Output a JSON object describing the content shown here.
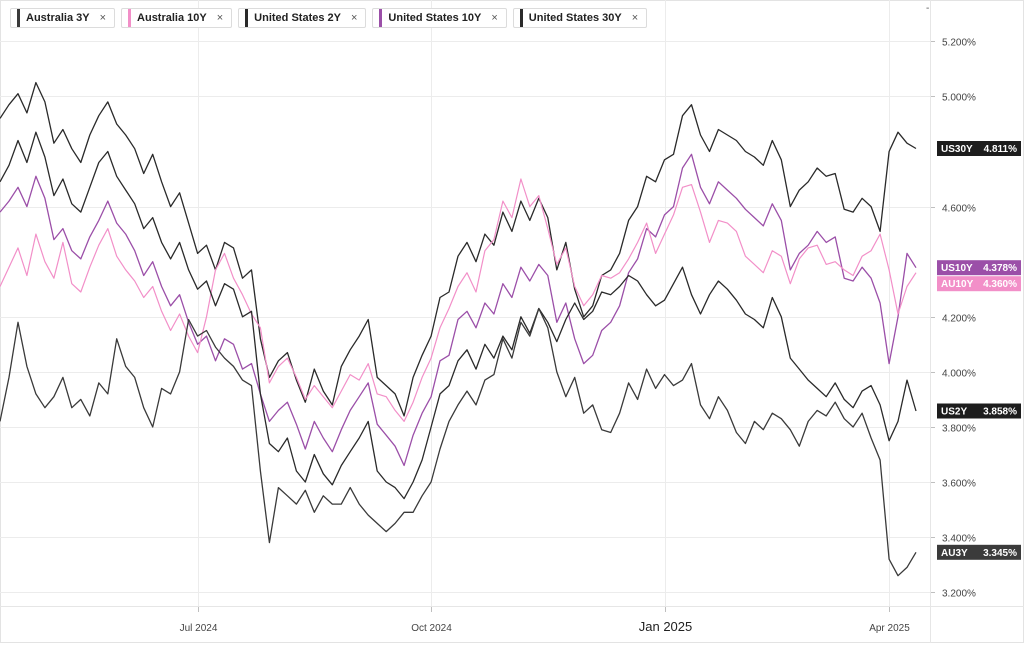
{
  "legend": [
    {
      "label": "Australia 3Y",
      "color": "#3a3a3a"
    },
    {
      "label": "Australia 10Y",
      "color": "#f28fc8"
    },
    {
      "label": "United States 2Y",
      "color": "#2a2a2a"
    },
    {
      "label": "United States 10Y",
      "color": "#9b4fa8"
    },
    {
      "label": "United States 30Y",
      "color": "#2a2a2a"
    }
  ],
  "legend_close_glyph": "×",
  "menu_glyph": "‐",
  "chart_data": {
    "type": "line",
    "x_ticks": [
      "Jul 2024",
      "Oct 2024",
      "Jan 2025",
      "Apr 2025"
    ],
    "y_ticks": [
      "5.200%",
      "5.000%",
      "4.600%",
      "4.200%",
      "4.000%",
      "3.800%",
      "3.600%",
      "3.400%",
      "3.200%"
    ],
    "ylim": [
      3.15,
      5.35
    ],
    "grid": true,
    "series": [
      {
        "name": "United States 30Y",
        "tag": "US30Y",
        "last": "4.811%",
        "color": "#2a2a2a",
        "label_bg": "#1d1d1d",
        "values": [
          4.92,
          4.97,
          5.01,
          4.94,
          5.05,
          4.98,
          4.83,
          4.88,
          4.81,
          4.76,
          4.86,
          4.93,
          4.98,
          4.9,
          4.86,
          4.81,
          4.72,
          4.79,
          4.69,
          4.6,
          4.65,
          4.54,
          4.43,
          4.46,
          4.37,
          4.47,
          4.45,
          4.34,
          4.37,
          4.12,
          3.98,
          4.04,
          4.07,
          3.97,
          3.89,
          4.01,
          3.93,
          3.88,
          4.02,
          4.08,
          4.13,
          4.19,
          3.98,
          3.95,
          3.92,
          3.84,
          3.98,
          4.06,
          4.13,
          4.27,
          4.29,
          4.42,
          4.47,
          4.4,
          4.5,
          4.46,
          4.58,
          4.51,
          4.62,
          4.55,
          4.63,
          4.56,
          4.37,
          4.47,
          4.3,
          4.2,
          4.24,
          4.35,
          4.37,
          4.43,
          4.55,
          4.6,
          4.71,
          4.69,
          4.77,
          4.79,
          4.93,
          4.97,
          4.86,
          4.8,
          4.88,
          4.86,
          4.84,
          4.8,
          4.78,
          4.75,
          4.84,
          4.77,
          4.6,
          4.66,
          4.69,
          4.74,
          4.71,
          4.72,
          4.59,
          4.58,
          4.63,
          4.6,
          4.51,
          4.8,
          4.87,
          4.83,
          4.811
        ]
      },
      {
        "name": "United States 10Y",
        "tag": "US10Y",
        "last": "4.378%",
        "color": "#9b4fa8",
        "label_bg": "#9b4fa8",
        "values": [
          4.58,
          4.62,
          4.67,
          4.6,
          4.71,
          4.63,
          4.48,
          4.52,
          4.44,
          4.41,
          4.49,
          4.55,
          4.62,
          4.54,
          4.5,
          4.44,
          4.35,
          4.4,
          4.31,
          4.24,
          4.28,
          4.18,
          4.1,
          4.13,
          4.04,
          4.12,
          4.1,
          4.01,
          4.03,
          3.92,
          3.82,
          3.86,
          3.89,
          3.81,
          3.72,
          3.82,
          3.76,
          3.71,
          3.79,
          3.86,
          3.91,
          3.96,
          3.81,
          3.77,
          3.73,
          3.66,
          3.77,
          3.85,
          3.91,
          4.04,
          4.06,
          4.19,
          4.22,
          4.16,
          4.25,
          4.21,
          4.32,
          4.27,
          4.38,
          4.33,
          4.39,
          4.35,
          4.18,
          4.25,
          4.12,
          4.03,
          4.06,
          4.15,
          4.18,
          4.24,
          4.36,
          4.41,
          4.52,
          4.49,
          4.57,
          4.6,
          4.74,
          4.79,
          4.67,
          4.61,
          4.69,
          4.66,
          4.63,
          4.59,
          4.56,
          4.53,
          4.61,
          4.55,
          4.37,
          4.43,
          4.46,
          4.51,
          4.47,
          4.49,
          4.34,
          4.33,
          4.38,
          4.34,
          4.25,
          4.03,
          4.2,
          4.43,
          4.378
        ]
      },
      {
        "name": "Australia 10Y",
        "tag": "AU10Y",
        "last": "4.360%",
        "color": "#f28fc8",
        "label_bg": "#f28fc8",
        "values": [
          4.31,
          4.38,
          4.45,
          4.35,
          4.5,
          4.4,
          4.34,
          4.47,
          4.32,
          4.29,
          4.38,
          4.46,
          4.52,
          4.42,
          4.37,
          4.33,
          4.27,
          4.31,
          4.22,
          4.15,
          4.21,
          4.13,
          4.07,
          4.2,
          4.37,
          4.43,
          4.34,
          4.28,
          4.21,
          4.16,
          3.96,
          4.02,
          4.05,
          3.98,
          3.9,
          3.95,
          3.91,
          3.87,
          3.93,
          3.99,
          3.97,
          4.03,
          3.92,
          3.91,
          3.86,
          3.82,
          3.89,
          3.98,
          4.05,
          4.16,
          4.23,
          4.31,
          4.36,
          4.29,
          4.44,
          4.48,
          4.62,
          4.56,
          4.7,
          4.6,
          4.64,
          4.52,
          4.39,
          4.45,
          4.31,
          4.24,
          4.28,
          4.35,
          4.34,
          4.36,
          4.41,
          4.47,
          4.54,
          4.43,
          4.5,
          4.57,
          4.67,
          4.68,
          4.58,
          4.47,
          4.55,
          4.54,
          4.51,
          4.42,
          4.39,
          4.36,
          4.44,
          4.42,
          4.32,
          4.41,
          4.45,
          4.46,
          4.39,
          4.4,
          4.37,
          4.35,
          4.42,
          4.44,
          4.5,
          4.37,
          4.21,
          4.31,
          4.36
        ]
      },
      {
        "name": "United States 2Y",
        "tag": "US2Y",
        "last": "3.858%",
        "color": "#2a2a2a",
        "label_bg": "#1d1d1d",
        "values": [
          4.69,
          4.75,
          4.84,
          4.76,
          4.87,
          4.78,
          4.64,
          4.7,
          4.61,
          4.58,
          4.67,
          4.76,
          4.8,
          4.71,
          4.66,
          4.61,
          4.52,
          4.56,
          4.47,
          4.41,
          4.47,
          4.37,
          4.3,
          4.33,
          4.24,
          4.32,
          4.3,
          4.2,
          4.22,
          3.92,
          3.74,
          3.71,
          3.76,
          3.64,
          3.6,
          3.7,
          3.63,
          3.59,
          3.66,
          3.71,
          3.76,
          3.82,
          3.64,
          3.6,
          3.58,
          3.54,
          3.6,
          3.68,
          3.8,
          3.92,
          3.95,
          4.04,
          4.08,
          4.01,
          4.1,
          4.05,
          4.13,
          4.08,
          4.2,
          4.14,
          4.23,
          4.18,
          4.11,
          4.19,
          4.25,
          4.19,
          4.22,
          4.29,
          4.28,
          4.31,
          4.35,
          4.33,
          4.28,
          4.24,
          4.26,
          4.32,
          4.38,
          4.28,
          4.21,
          4.28,
          4.33,
          4.3,
          4.26,
          4.21,
          4.19,
          4.16,
          4.27,
          4.2,
          4.05,
          4.01,
          3.97,
          3.94,
          3.91,
          3.96,
          3.9,
          3.87,
          3.93,
          3.95,
          3.88,
          3.75,
          3.82,
          3.97,
          3.858
        ]
      },
      {
        "name": "Australia 3Y",
        "tag": "AU3Y",
        "last": "3.345%",
        "color": "#3a3a3a",
        "label_bg": "#3b3b3b",
        "values": [
          3.82,
          3.98,
          4.18,
          4.02,
          3.92,
          3.87,
          3.91,
          3.98,
          3.87,
          3.9,
          3.84,
          3.96,
          3.92,
          4.12,
          4.02,
          3.98,
          3.87,
          3.8,
          3.94,
          3.92,
          4.0,
          4.19,
          4.13,
          4.15,
          4.09,
          4.05,
          4.02,
          3.97,
          3.95,
          3.64,
          3.38,
          3.58,
          3.55,
          3.52,
          3.57,
          3.49,
          3.55,
          3.52,
          3.52,
          3.58,
          3.52,
          3.48,
          3.45,
          3.42,
          3.45,
          3.49,
          3.49,
          3.55,
          3.6,
          3.72,
          3.82,
          3.88,
          3.93,
          3.88,
          3.97,
          3.99,
          4.12,
          4.05,
          4.18,
          4.13,
          4.23,
          4.16,
          4.0,
          3.91,
          3.98,
          3.85,
          3.88,
          3.79,
          3.78,
          3.85,
          3.96,
          3.9,
          4.01,
          3.94,
          3.99,
          3.95,
          3.97,
          4.03,
          3.88,
          3.83,
          3.91,
          3.86,
          3.78,
          3.74,
          3.82,
          3.79,
          3.85,
          3.83,
          3.79,
          3.73,
          3.82,
          3.86,
          3.84,
          3.89,
          3.83,
          3.8,
          3.85,
          3.76,
          3.68,
          3.32,
          3.26,
          3.29,
          3.345
        ]
      }
    ]
  }
}
